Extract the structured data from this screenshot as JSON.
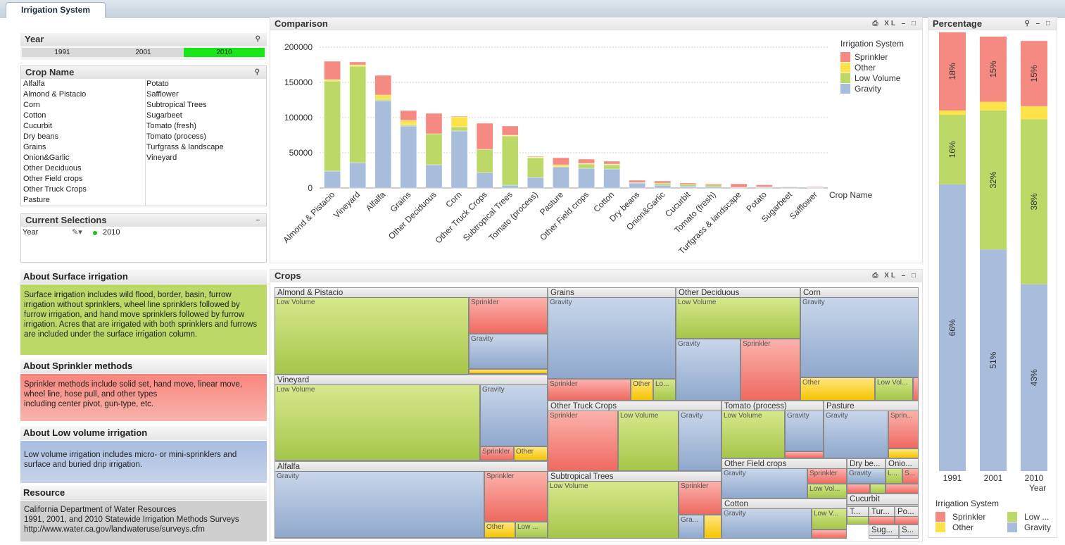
{
  "tab": "Irrigation System",
  "year_box": {
    "title": "Year",
    "values": [
      "1991",
      "2001",
      "2010"
    ],
    "selected": "2010"
  },
  "crop_box": {
    "title": "Crop Name",
    "col1": [
      "Alfalfa",
      "Almond & Pistacio",
      "Corn",
      "Cotton",
      "Cucurbit",
      "Dry beans",
      "Grains",
      "Onion&Garlic",
      "Other Deciduous",
      "Other Field crops",
      "Other Truck Crops",
      "Pasture"
    ],
    "col2": [
      "Potato",
      "Safflower",
      "Subtropical Trees",
      "Sugarbeet",
      "Tomato (fresh)",
      "Tomato (process)",
      "Turfgrass & landscape",
      "Vineyard"
    ]
  },
  "current_selections": {
    "title": "Current Selections",
    "field": "Year",
    "value": "2010"
  },
  "about_surface": {
    "title": "About Surface irrigation",
    "text": "Surface irrigation includes wild flood, border, basin, furrow irrigation without sprinklers, wheel line sprinklers followed by furrow irrigation, and hand move sprinklers followed by furrow irrigation. Acres that are irrigated with both sprinklers and furrows are included under the surface irrigation column."
  },
  "about_sprinkler": {
    "title": "About Sprinkler methods",
    "line1": "Sprinkler methods include solid set, hand move, linear move, wheel line, hose pull, and other types",
    "line2": "including center pivot, gun-type, etc."
  },
  "about_low": {
    "title": "About Low volume irrigation",
    "text": "Low volume irrigation includes micro- or mini-sprinklers and surface and buried drip irrigation."
  },
  "resource": {
    "title": "Resource",
    "line1": "California Department of Water Resources",
    "line2": "1991, 2001, and 2010 Statewide Irrigation Methods Surveys",
    "line3": "http://www.water.ca.gov/landwateruse/surveys.cfm"
  },
  "comparison_title": "Comparison",
  "crops_title": "Crops",
  "percentage_title": "Percentage",
  "colors": {
    "Sprinkler": "#f48a82",
    "Other": "#fde24a",
    "Low Volume": "#bcd968",
    "Gravity": "#a8bcdc"
  },
  "chart_data": [
    {
      "type": "bar",
      "stacked": true,
      "title": "Comparison",
      "xlabel": "Crop Name",
      "ylabel": "",
      "ylim": [
        0,
        200000
      ],
      "yticks": [
        "0",
        "50000",
        "100000",
        "150000",
        "200000"
      ],
      "legend_title": "Irrigation System",
      "legend_position": "top-right",
      "categories": [
        "Almond & Pistacio",
        "Vineyard",
        "Alfalfa",
        "Grains",
        "Other Deciduous",
        "Corn",
        "Other Truck Crops",
        "Subtropical Trees",
        "Tomato (process)",
        "Pasture",
        "Other Field crops",
        "Cotton",
        "Dry beans",
        "Onion&Garlic",
        "Cucurbit",
        "Tomato (fresh)",
        "Turfgrass & landscape",
        "Potato",
        "Sugarbeet",
        "Safflower"
      ],
      "series": [
        {
          "name": "Gravity",
          "values": [
            24000,
            36000,
            124000,
            88000,
            33000,
            81000,
            22000,
            4000,
            15000,
            30000,
            28000,
            27000,
            7000,
            4000,
            2500,
            2000,
            1000,
            1000,
            1500,
            800
          ]
        },
        {
          "name": "Low Volume",
          "values": [
            128000,
            137000,
            2000,
            2000,
            44000,
            6000,
            33000,
            70000,
            28000,
            0,
            6000,
            6000,
            1000,
            3000,
            2500,
            2500,
            0,
            500,
            0,
            0
          ]
        },
        {
          "name": "Other",
          "values": [
            2000,
            2000,
            6000,
            6000,
            0,
            14000,
            0,
            1000,
            1000,
            3000,
            1000,
            1000,
            0,
            0,
            0,
            0,
            0,
            0,
            0,
            0
          ]
        },
        {
          "name": "Sprinkler",
          "values": [
            26000,
            4000,
            28000,
            14000,
            29000,
            1000,
            37000,
            13000,
            1000,
            10000,
            6000,
            4000,
            3000,
            3000,
            2000,
            1500,
            5000,
            3000,
            500,
            1000
          ]
        }
      ]
    },
    {
      "type": "bar",
      "stacked": true,
      "title": "Percentage",
      "xlabel": "Year",
      "ylim": [
        0,
        100
      ],
      "legend_title": "Irrigation System",
      "legend_position": "bottom",
      "legend_labels": [
        "Sprinkler",
        "Other",
        "Low ...",
        "Gravity"
      ],
      "categories": [
        "1991",
        "2001",
        "2010"
      ],
      "series": [
        {
          "name": "Gravity",
          "values": [
            66,
            51,
            43
          ],
          "labels": [
            "66%",
            "51%",
            "43%"
          ]
        },
        {
          "name": "Low Volume",
          "values": [
            16,
            32,
            38
          ],
          "labels": [
            "16%",
            "32%",
            "38%"
          ]
        },
        {
          "name": "Other",
          "values": [
            1,
            2,
            3
          ],
          "labels": [
            "",
            "",
            ""
          ]
        },
        {
          "name": "Sprinkler",
          "values": [
            18,
            15,
            15
          ],
          "labels": [
            "18%",
            "15%",
            "15%"
          ]
        }
      ]
    },
    {
      "type": "treemap",
      "title": "Crops",
      "groups": [
        {
          "name": "Almond & Pistacio",
          "items": [
            "Low Volume",
            "Sprinkler",
            "Gravity"
          ]
        },
        {
          "name": "Vineyard",
          "items": [
            "Low Volume",
            "Gravity",
            "Sprinkler",
            "Other"
          ]
        },
        {
          "name": "Alfalfa",
          "items": [
            "Gravity",
            "Sprinkler",
            "Other",
            "Low ..."
          ]
        },
        {
          "name": "Grains",
          "items": [
            "Gravity",
            "Sprinkler",
            "Other",
            "Lo..."
          ]
        },
        {
          "name": "Other Deciduous",
          "items": [
            "Low Volume",
            "Gravity",
            "Sprinkler"
          ]
        },
        {
          "name": "Corn",
          "items": [
            "Gravity",
            "Other",
            "Low Vol..."
          ]
        },
        {
          "name": "Other Truck Crops",
          "items": [
            "Sprinkler",
            "Low Volume",
            "Gravity"
          ]
        },
        {
          "name": "Subtropical Trees",
          "items": [
            "Low Volume",
            "Sprinkler",
            "Gra..."
          ]
        },
        {
          "name": "Tomato (process)",
          "items": [
            "Low Volume",
            "Gravity"
          ]
        },
        {
          "name": "Pasture",
          "items": [
            "Gravity",
            "Sprin..."
          ]
        },
        {
          "name": "Other Field crops",
          "items": [
            "Gravity",
            "Sprinkler",
            "Low Vol..."
          ]
        },
        {
          "name": "Cotton",
          "items": [
            "Gravity",
            "Low V..."
          ]
        },
        {
          "name": "Dry be...",
          "items": [
            "Gravity"
          ]
        },
        {
          "name": "Onio...",
          "items": [
            "L...",
            "S..."
          ]
        },
        {
          "name": "Cucurbit",
          "items": []
        },
        {
          "name": "T...",
          "items": []
        },
        {
          "name": "Tur...",
          "items": []
        },
        {
          "name": "Po...",
          "items": []
        },
        {
          "name": "Sug...",
          "items": []
        },
        {
          "name": "S...",
          "items": []
        }
      ]
    }
  ]
}
